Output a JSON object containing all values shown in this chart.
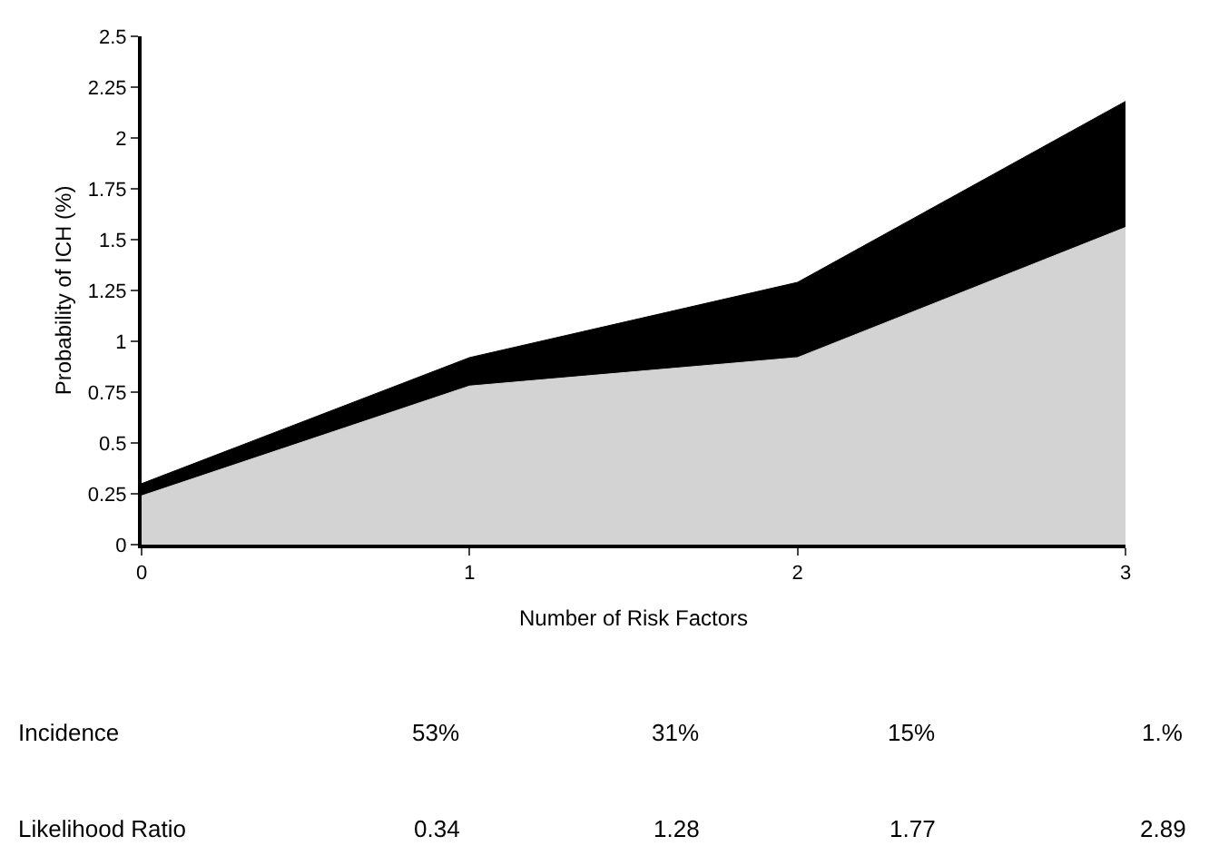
{
  "chart_data": {
    "type": "area",
    "stacked": true,
    "xlabel": "Number of Risk Factors",
    "ylabel": "Probability of ICH (%)",
    "x": [
      0,
      1,
      2,
      3
    ],
    "series": [
      {
        "color": "#d3d3d3",
        "values": [
          0.24,
          0.78,
          0.92,
          1.56
        ]
      },
      {
        "color": "#000000",
        "values": [
          0.06,
          0.14,
          0.37,
          0.62
        ]
      }
    ],
    "xlim": [
      0,
      3
    ],
    "xticks": [
      0,
      1,
      2,
      3
    ],
    "ylim": [
      0,
      2.5
    ],
    "yticks": [
      0,
      0.25,
      0.5,
      0.75,
      1,
      1.25,
      1.5,
      1.75,
      2,
      2.25,
      2.5
    ],
    "annotations": [
      "Incidence",
      "53%",
      "31%",
      "15%",
      "1.%",
      "Likelihood Ratio",
      "0.34",
      "1.28",
      "1.77",
      "2.89"
    ]
  }
}
